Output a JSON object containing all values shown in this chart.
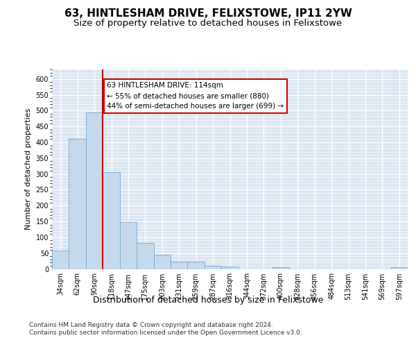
{
  "title": "63, HINTLESHAM DRIVE, FELIXSTOWE, IP11 2YW",
  "subtitle": "Size of property relative to detached houses in Felixstowe",
  "xlabel": "Distribution of detached houses by size in Felixstowe",
  "ylabel": "Number of detached properties",
  "categories": [
    "34sqm",
    "62sqm",
    "90sqm",
    "118sqm",
    "147sqm",
    "175sqm",
    "203sqm",
    "231sqm",
    "259sqm",
    "287sqm",
    "316sqm",
    "344sqm",
    "372sqm",
    "400sqm",
    "428sqm",
    "456sqm",
    "484sqm",
    "513sqm",
    "541sqm",
    "569sqm",
    "597sqm"
  ],
  "values": [
    57,
    410,
    495,
    305,
    148,
    82,
    44,
    24,
    24,
    10,
    7,
    0,
    0,
    5,
    0,
    0,
    0,
    0,
    0,
    0,
    5
  ],
  "bar_color": "#c5d9ed",
  "bar_edge_color": "#6fa8d0",
  "vline_color": "#cc0000",
  "vline_pos": 2.5,
  "annotation_text": "63 HINTLESHAM DRIVE: 114sqm\n← 55% of detached houses are smaller (880)\n44% of semi-detached houses are larger (699) →",
  "annotation_box_edgecolor": "#cc0000",
  "ylim": [
    0,
    630
  ],
  "yticks": [
    0,
    50,
    100,
    150,
    200,
    250,
    300,
    350,
    400,
    450,
    500,
    550,
    600
  ],
  "background_color": "#dce6f1",
  "footer_line1": "Contains HM Land Registry data © Crown copyright and database right 2024.",
  "footer_line2": "Contains public sector information licensed under the Open Government Licence v3.0.",
  "title_fontsize": 11,
  "subtitle_fontsize": 9.5,
  "xlabel_fontsize": 9,
  "ylabel_fontsize": 8,
  "tick_fontsize": 7,
  "annotation_fontsize": 7.5,
  "footer_fontsize": 6.5
}
